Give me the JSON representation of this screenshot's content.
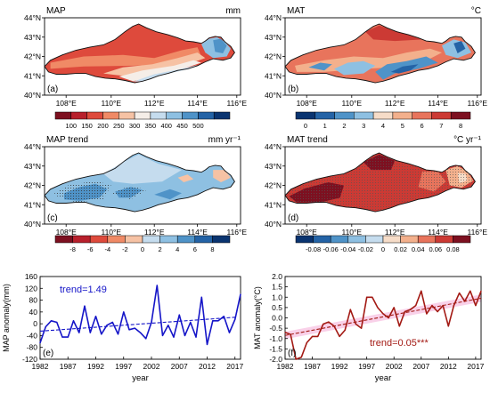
{
  "lat_ticks": [
    "44°N",
    "43°N",
    "42°N",
    "41°N",
    "40°N"
  ],
  "lon_ticks": [
    "108°E",
    "110°E",
    "112°E",
    "114°E",
    "116°E"
  ],
  "panels": [
    {
      "title": "MAP",
      "unit": "mm",
      "letter": "(a)",
      "colors": [
        "#7d1020",
        "#b8202c",
        "#de4a3c",
        "#f08a66",
        "#f6c2a4",
        "#f5eee8",
        "#c5dcee",
        "#8ec0e2",
        "#4f93c8",
        "#2463a6",
        "#0a3470"
      ],
      "cb_labels": [
        "100",
        "150",
        "200",
        "250",
        "300",
        "350",
        "400",
        "450",
        "500"
      ]
    },
    {
      "title": "MAT",
      "unit": "°C",
      "letter": "(b)",
      "colors": [
        "#0a3470",
        "#2463a6",
        "#4f93c8",
        "#8ec0e2",
        "#f6dcc8",
        "#f3b08c",
        "#e8745c",
        "#cc3a34",
        "#7d1020"
      ],
      "cb_labels": [
        "0",
        "1",
        "2",
        "3",
        "4",
        "5",
        "6",
        "7",
        "8"
      ]
    },
    {
      "title": "MAP trend",
      "unit": "mm yr⁻¹",
      "letter": "(c)",
      "colors": [
        "#7d1020",
        "#b8202c",
        "#de4a3c",
        "#f08a66",
        "#f6c2a4",
        "#c5dcee",
        "#8ec0e2",
        "#4f93c8",
        "#2463a6",
        "#0a3470"
      ],
      "cb_labels": [
        "-8",
        "-6",
        "-4",
        "-2",
        "0",
        "2",
        "4",
        "6",
        "8"
      ]
    },
    {
      "title": "MAT trend",
      "unit": "°C yr⁻¹",
      "letter": "(d)",
      "colors": [
        "#0a3470",
        "#2463a6",
        "#4f93c8",
        "#8ec0e2",
        "#c5dcee",
        "#f6dcc8",
        "#f3b08c",
        "#e8745c",
        "#cc3a34",
        "#7d1020"
      ],
      "cb_labels": [
        "-0.08",
        "-0.06",
        "-0.04",
        "-0.02",
        "0",
        "0.02",
        "0.04",
        "0.06",
        "0.08"
      ]
    }
  ],
  "chart_data": [
    {
      "type": "line",
      "panel": "(e)",
      "ylabel": "MAP anomaly(mm)",
      "xlabel": "year",
      "x_ticks": [
        "1982",
        "1987",
        "1992",
        "1997",
        "2002",
        "2007",
        "2012",
        "2017"
      ],
      "y_ticks": [
        "160",
        "120",
        "80",
        "40",
        "0",
        "-40",
        "-80",
        "-120"
      ],
      "xlim": [
        1982,
        2018
      ],
      "ylim": [
        -120,
        160
      ],
      "annotation": "trend=1.49",
      "color": "#1515c8",
      "series": [
        {
          "x": [
            1982,
            1983,
            1984,
            1985,
            1986,
            1987,
            1988,
            1989,
            1990,
            1991,
            1992,
            1993,
            1994,
            1995,
            1996,
            1997,
            1998,
            1999,
            2000,
            2001,
            2002,
            2003,
            2004,
            2005,
            2006,
            2007,
            2008,
            2009,
            2010,
            2011,
            2012,
            2013,
            2014,
            2015,
            2016,
            2017,
            2018
          ],
          "values": [
            -65,
            -10,
            10,
            5,
            -45,
            -45,
            10,
            -30,
            60,
            -30,
            25,
            -35,
            -5,
            5,
            -35,
            40,
            -20,
            -15,
            -30,
            -50,
            5,
            130,
            -40,
            -5,
            -45,
            30,
            -40,
            5,
            -45,
            90,
            -70,
            10,
            10,
            25,
            -30,
            15,
            100
          ]
        }
      ],
      "trend_line": {
        "x": [
          1982,
          2017
        ],
        "values": [
          -25,
          22
        ]
      }
    },
    {
      "type": "line",
      "panel": "(f)",
      "ylabel": "MAT anomaly(°C)",
      "xlabel": "year",
      "x_ticks": [
        "1982",
        "1987",
        "1992",
        "1997",
        "2002",
        "2007",
        "2012",
        "2017"
      ],
      "y_ticks": [
        "2.0",
        "1.5",
        "1.0",
        "0.5",
        "0.0",
        "-0.5",
        "-1.0",
        "-1.5",
        "-2.0"
      ],
      "xlim": [
        1982,
        2018
      ],
      "ylim": [
        -2.0,
        2.0
      ],
      "annotation": "trend=0.05***",
      "color": "#a31a14",
      "series": [
        {
          "x": [
            1982,
            1983,
            1984,
            1985,
            1986,
            1987,
            1988,
            1989,
            1990,
            1991,
            1992,
            1993,
            1994,
            1995,
            1996,
            1997,
            1998,
            1999,
            2000,
            2001,
            2002,
            2003,
            2004,
            2005,
            2006,
            2007,
            2008,
            2009,
            2010,
            2011,
            2012,
            2013,
            2014,
            2015,
            2016,
            2017,
            2018
          ],
          "values": [
            -0.7,
            -0.8,
            -2.0,
            -1.9,
            -1.2,
            -0.9,
            -0.9,
            -0.3,
            -0.2,
            -0.4,
            -0.9,
            -0.6,
            0.4,
            -0.3,
            -0.5,
            1.0,
            1.0,
            0.5,
            0.2,
            0.0,
            0.5,
            -0.4,
            0.3,
            0.4,
            0.6,
            1.3,
            0.2,
            0.6,
            0.3,
            0.6,
            -0.4,
            0.6,
            1.2,
            0.8,
            1.3,
            0.6,
            1.3
          ]
        }
      ],
      "trend_line": {
        "x": [
          1982,
          2018
        ],
        "values": [
          -0.85,
          0.95
        ]
      }
    }
  ]
}
